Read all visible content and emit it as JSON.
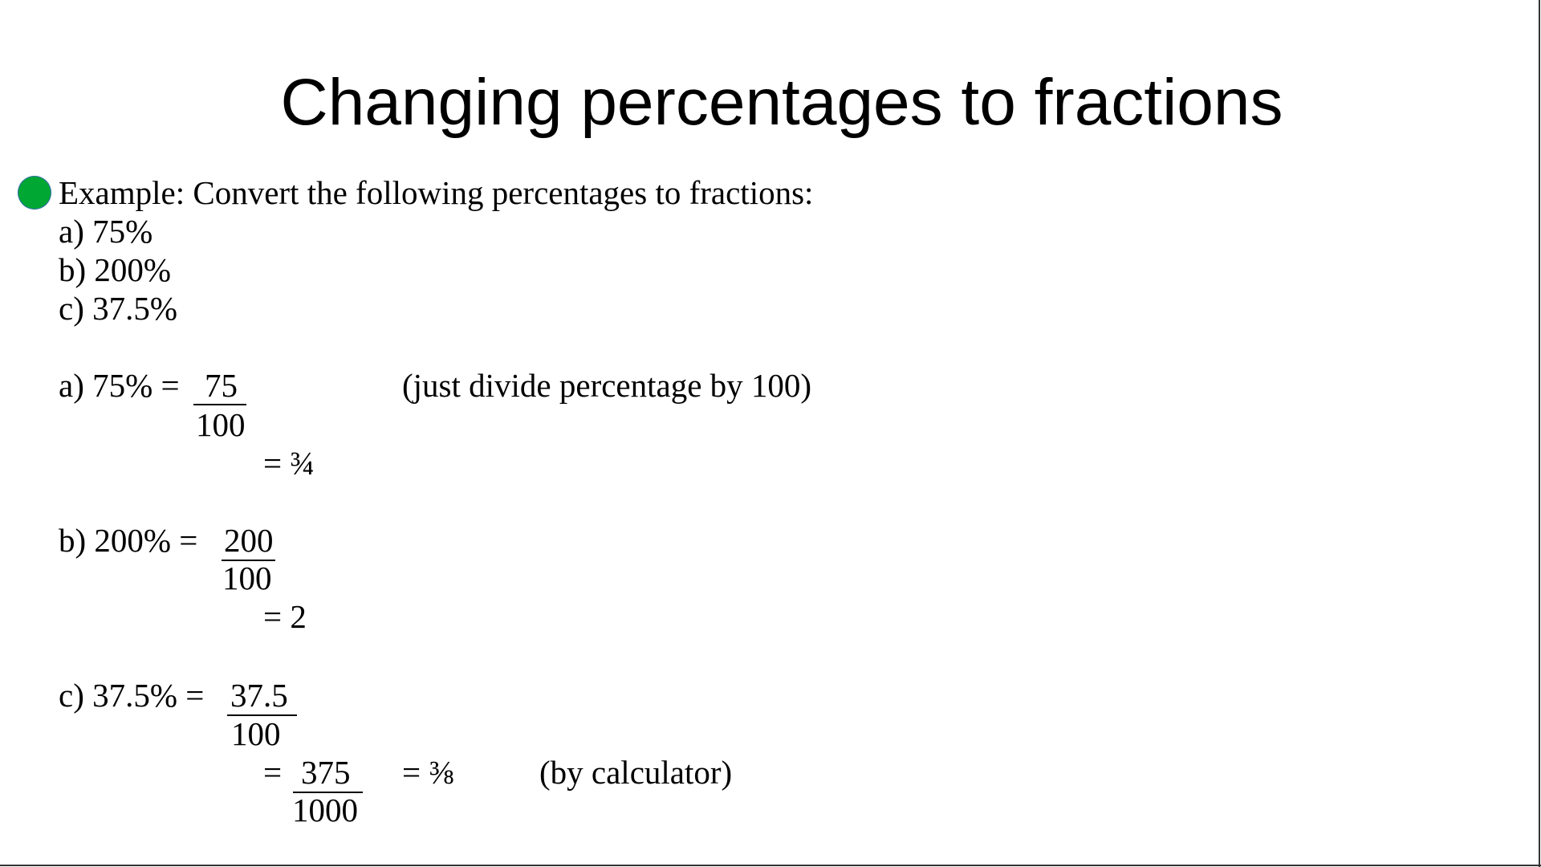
{
  "title": "Changing percentages to fractions",
  "bullet_color": "#00a733",
  "intro": "Example: Convert the following percentages to fractions:",
  "questions": [
    "a) 75%",
    "b) 200%",
    "c) 37.5%"
  ],
  "answers": {
    "a": {
      "lhs": "a) 75% =",
      "num": "75",
      "den": "100",
      "result": "= ¾",
      "note": "(just divide percentage by 100)"
    },
    "b": {
      "lhs": "b) 200% =",
      "num": "200",
      "den": "100",
      "result": "= 2"
    },
    "c": {
      "lhs": "c) 37.5% =",
      "num": "37.5",
      "den": "100",
      "eq": "=",
      "num2": "375",
      "den2": "1000",
      "result": "= ⅜",
      "note": "(by calculator)"
    }
  }
}
